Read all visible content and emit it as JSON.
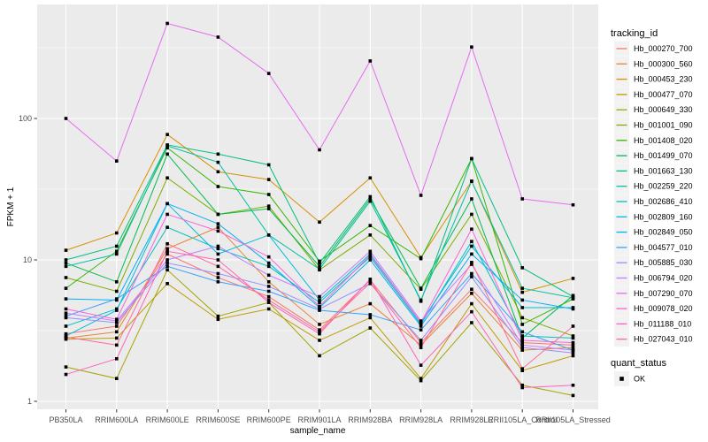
{
  "figure": {
    "y_axis": {
      "title": "FPKM + 1",
      "tick_labels": [
        "100",
        "10",
        "1"
      ]
    },
    "x_axis": {
      "title": "sample_name"
    },
    "legend": {
      "tracking_title": "tracking_id",
      "quant_title": "quant_status",
      "quant_items": [
        {
          "label": "OK"
        }
      ]
    },
    "colors": {
      "panel_bg": "#EBEBEB",
      "gridline": "#FFFFFF",
      "tick_mark": "#333333",
      "tick_label": "#4D4D4D",
      "legend_key_bg": "#F2F2F2",
      "point": "#000000"
    }
  },
  "chart_data": {
    "type": "line",
    "title": "",
    "xlabel": "sample_name",
    "ylabel": "FPKM + 1",
    "y_scale": "log10",
    "y_ticks": [
      1,
      10,
      100
    ],
    "ylim": [
      0.85,
      700
    ],
    "grid": "on",
    "legend_position": "right",
    "point_shape": "filled-black-square",
    "quant_status": "OK",
    "categories": [
      "PB350LA",
      "RRIM600LA",
      "RRIM600LE",
      "RRIM600SE",
      "RRIM600PE",
      "RRIM901LA",
      "RRIM928BA",
      "RRIM928LA",
      "RRIM928LE",
      "RRII105LA_Control",
      "RRII105LA_Stressed"
    ],
    "series": [
      {
        "name": "Hb_000270_700",
        "color": "#F8766D",
        "values": [
          3.0,
          3.4,
          11,
          7.5,
          5.5,
          3.2,
          7.2,
          2.6,
          6.2,
          2.6,
          2.5
        ]
      },
      {
        "name": "Hb_000300_560",
        "color": "#EA8331",
        "values": [
          2.8,
          3.1,
          12,
          17,
          7.0,
          3.5,
          4.9,
          2.5,
          5.8,
          2.3,
          2.4
        ]
      },
      {
        "name": "Hb_000453_230",
        "color": "#D89000",
        "values": [
          11.7,
          15.5,
          77,
          42,
          37,
          18.5,
          38,
          10.4,
          36,
          5.9,
          7.4
        ]
      },
      {
        "name": "Hb_000477_070",
        "color": "#C09B00",
        "values": [
          2.75,
          2.8,
          6.8,
          3.8,
          4.5,
          2.7,
          3.9,
          1.45,
          4.9,
          1.65,
          2.1
        ]
      },
      {
        "name": "Hb_000649_330",
        "color": "#A3A500",
        "values": [
          1.75,
          1.45,
          8.5,
          4.0,
          5.0,
          2.1,
          3.3,
          1.4,
          3.6,
          1.3,
          1.1
        ]
      },
      {
        "name": "Hb_001001_090",
        "color": "#7CAE00",
        "values": [
          7.5,
          6.0,
          38,
          21,
          24,
          8.5,
          15,
          6.2,
          21,
          3.9,
          2.9
        ]
      },
      {
        "name": "Hb_001408_020",
        "color": "#39B600",
        "values": [
          6.3,
          11.5,
          62,
          33,
          29,
          9.8,
          17.5,
          10.2,
          52,
          3.5,
          5.3
        ]
      },
      {
        "name": "Hb_001499_070",
        "color": "#00BB4E",
        "values": [
          9.5,
          7.0,
          56,
          21,
          23,
          9.0,
          27,
          6.3,
          27,
          2.8,
          5.6
        ]
      },
      {
        "name": "Hb_001663_130",
        "color": "#00BF7D",
        "values": [
          10.0,
          12.5,
          65,
          56,
          47,
          9.5,
          28,
          5.1,
          52,
          8.8,
          5.5
        ]
      },
      {
        "name": "Hb_002259_220",
        "color": "#00C1A3",
        "values": [
          9.0,
          11.0,
          64,
          49,
          15,
          8.6,
          26,
          5.2,
          36,
          6.3,
          5.4
        ]
      },
      {
        "name": "Hb_002686_410",
        "color": "#00BFC4",
        "values": [
          3.4,
          4.5,
          17,
          12,
          9.0,
          5.0,
          10.5,
          3.5,
          13.5,
          2.9,
          2.8
        ]
      },
      {
        "name": "Hb_002809_160",
        "color": "#00BAE0",
        "values": [
          2.9,
          4.4,
          25,
          11,
          15,
          5.2,
          11,
          3.6,
          12.5,
          4.6,
          4.6
        ]
      },
      {
        "name": "Hb_002849_050",
        "color": "#00B0F6",
        "values": [
          5.3,
          5.2,
          25,
          18,
          9.5,
          4.6,
          10,
          3.4,
          11,
          5.2,
          4.5
        ]
      },
      {
        "name": "Hb_004577_010",
        "color": "#35A2FF",
        "values": [
          4.0,
          5.3,
          9.0,
          7.0,
          6.0,
          4.4,
          4.1,
          3.2,
          8.0,
          3.1,
          2.3
        ]
      },
      {
        "name": "Hb_005885_030",
        "color": "#9590FF",
        "values": [
          3.9,
          3.6,
          9.5,
          8.0,
          6.5,
          4.5,
          6.8,
          2.7,
          7.6,
          2.4,
          2.2
        ]
      },
      {
        "name": "Hb_006794_020",
        "color": "#C77CFF",
        "values": [
          4.2,
          3.7,
          10,
          12.5,
          7.8,
          5.5,
          11.5,
          3.7,
          9.3,
          2.5,
          2.3
        ]
      },
      {
        "name": "Hb_007290_070",
        "color": "#E76BF3",
        "values": [
          100,
          50,
          470,
          376,
          208,
          60,
          255,
          28.6,
          320,
          27,
          24.5
        ]
      },
      {
        "name": "Hb_009078_020",
        "color": "#FA62DB",
        "values": [
          4.5,
          3.8,
          21,
          16,
          10.5,
          4.7,
          10.8,
          3.6,
          16.5,
          2.7,
          2.6
        ]
      },
      {
        "name": "Hb_011188_010",
        "color": "#FF62BC",
        "values": [
          1.55,
          2.0,
          11.5,
          10.0,
          5.0,
          3.0,
          7.3,
          1.8,
          4.3,
          1.25,
          1.3
        ]
      },
      {
        "name": "Hb_027043_010",
        "color": "#FF6A98",
        "values": [
          2.85,
          2.5,
          13,
          9.0,
          5.2,
          3.1,
          6.9,
          2.4,
          9.6,
          1.7,
          3.4
        ]
      }
    ]
  }
}
